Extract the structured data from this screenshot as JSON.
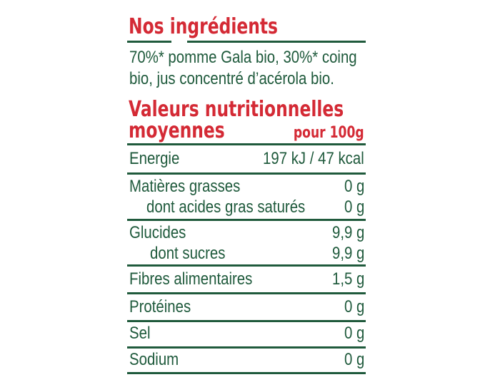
{
  "ingredients": {
    "title": "Nos ingrédients",
    "line1": "70%* pomme Gala bio, 30%* coing",
    "line2": "bio, jus concentré d’acérola bio."
  },
  "nutrition": {
    "title_line1": "Valeurs nutritionnelles",
    "title_line2": "moyennes",
    "per": "pour 100g",
    "rows": [
      {
        "label": "Energie",
        "value": "197 kJ / 47 kcal"
      },
      {
        "label": "Matières grasses",
        "value": "0 g"
      },
      {
        "label": "dont acides gras saturés",
        "value": "0 g"
      },
      {
        "label": "Glucides",
        "value": "9,9 g"
      },
      {
        "label": "dont sucres",
        "value": "9,9 g"
      },
      {
        "label": "Fibres alimentaires",
        "value": "1,5 g"
      },
      {
        "label": "Protéines",
        "value": "0 g"
      },
      {
        "label": "Sel",
        "value": "0 g"
      },
      {
        "label": "Sodium",
        "value": "0 g"
      }
    ]
  },
  "colors": {
    "red": "#d42a35",
    "green": "#1f5a3c"
  }
}
